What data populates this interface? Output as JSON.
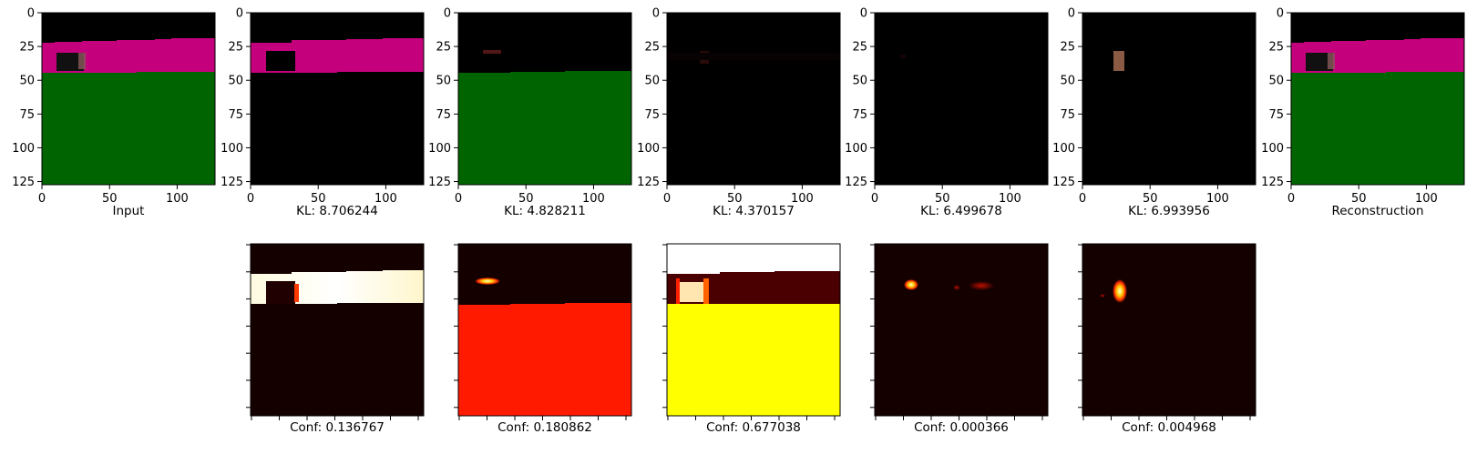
{
  "top_row": {
    "panels": [
      {
        "kind": "input",
        "caption": "Input"
      },
      {
        "kind": "component",
        "caption": "KL: 8.706244"
      },
      {
        "kind": "component",
        "caption": "KL: 4.828211"
      },
      {
        "kind": "component",
        "caption": "KL: 4.370157"
      },
      {
        "kind": "component",
        "caption": "KL: 6.499678"
      },
      {
        "kind": "component",
        "caption": "KL: 6.993956"
      },
      {
        "kind": "reconstruction",
        "caption": "Reconstruction"
      }
    ],
    "x_ticks": [
      "0",
      "50",
      "100"
    ],
    "y_ticks": [
      "0",
      "25",
      "50",
      "75",
      "100",
      "125"
    ]
  },
  "bottom_row": {
    "panels": [
      {
        "caption": "Conf: 0.136767"
      },
      {
        "caption": "Conf: 0.180862"
      },
      {
        "caption": "Conf: 0.677038"
      },
      {
        "caption": "Conf: 0.000366"
      },
      {
        "caption": "Conf: 0.004968"
      }
    ]
  },
  "colors": {
    "sky": "#000000",
    "building": "#c4007c",
    "ground": "#006400",
    "heat_dark": "#150000",
    "heat_red": "#ff1a00",
    "heat_yellow": "#ffff00",
    "heat_white": "#ffffff"
  }
}
